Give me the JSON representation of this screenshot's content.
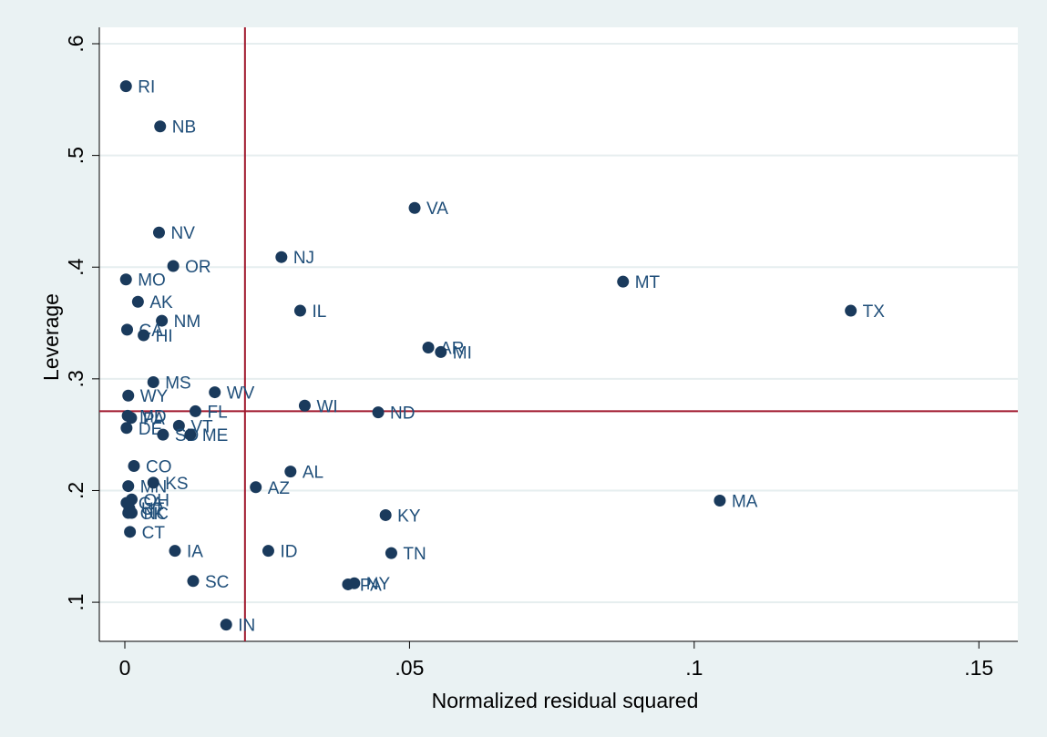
{
  "chart_data": {
    "type": "scatter",
    "xlabel": "Normalized residual squared",
    "ylabel": "Leverage",
    "xlim": [
      0,
      0.153
    ],
    "ylim": [
      0.065,
      0.6
    ],
    "xticks": [
      0,
      0.05,
      0.1,
      0.15
    ],
    "xtick_labels": [
      "0",
      ".05",
      ".1",
      ".15"
    ],
    "yticks": [
      0.1,
      0.2,
      0.3,
      0.4,
      0.5,
      0.6
    ],
    "ytick_labels": [
      ".1",
      ".2",
      ".3",
      ".4",
      ".5",
      ".6"
    ],
    "grid": true,
    "reference_lines": {
      "x": 0.0211,
      "y": 0.271
    },
    "colors": {
      "background": "#eaf2f3",
      "plot_area": "#ffffff",
      "marker": "#1a3a5c",
      "label": "#1f4e79",
      "reference_line": "#a0182d",
      "grid": "#e6eeef"
    },
    "points": [
      {
        "label": "RI",
        "x": 0.0002,
        "y": 0.562
      },
      {
        "label": "NB",
        "x": 0.0062,
        "y": 0.526
      },
      {
        "label": "VA",
        "x": 0.0509,
        "y": 0.453
      },
      {
        "label": "NV",
        "x": 0.006,
        "y": 0.431
      },
      {
        "label": "NJ",
        "x": 0.0275,
        "y": 0.409
      },
      {
        "label": "OR",
        "x": 0.0085,
        "y": 0.401
      },
      {
        "label": "MO",
        "x": 0.0002,
        "y": 0.389
      },
      {
        "label": "MT",
        "x": 0.0875,
        "y": 0.387
      },
      {
        "label": "AK",
        "x": 0.0023,
        "y": 0.369
      },
      {
        "label": "IL",
        "x": 0.0308,
        "y": 0.361
      },
      {
        "label": "TX",
        "x": 0.1275,
        "y": 0.361
      },
      {
        "label": "NM",
        "x": 0.0065,
        "y": 0.352
      },
      {
        "label": "CA",
        "x": 0.0004,
        "y": 0.344
      },
      {
        "label": "HI",
        "x": 0.0033,
        "y": 0.339
      },
      {
        "label": "AR",
        "x": 0.0533,
        "y": 0.328
      },
      {
        "label": "MI",
        "x": 0.0555,
        "y": 0.324
      },
      {
        "label": "MS",
        "x": 0.005,
        "y": 0.297
      },
      {
        "label": "WV",
        "x": 0.0158,
        "y": 0.288
      },
      {
        "label": "WY",
        "x": 0.0006,
        "y": 0.285
      },
      {
        "label": "WI",
        "x": 0.0316,
        "y": 0.276
      },
      {
        "label": "FL",
        "x": 0.0124,
        "y": 0.271
      },
      {
        "label": "ND",
        "x": 0.0445,
        "y": 0.27
      },
      {
        "label": "MD",
        "x": 0.0005,
        "y": 0.267
      },
      {
        "label": "PA",
        "x": 0.0011,
        "y": 0.265
      },
      {
        "label": "VT",
        "x": 0.0095,
        "y": 0.258
      },
      {
        "label": "DE",
        "x": 0.0003,
        "y": 0.256
      },
      {
        "label": "SD",
        "x": 0.0067,
        "y": 0.25
      },
      {
        "label": "ME",
        "x": 0.0115,
        "y": 0.25
      },
      {
        "label": "CO",
        "x": 0.0016,
        "y": 0.222
      },
      {
        "label": "AL",
        "x": 0.0291,
        "y": 0.217
      },
      {
        "label": "MN",
        "x": 0.0006,
        "y": 0.204
      },
      {
        "label": "KS",
        "x": 0.005,
        "y": 0.207
      },
      {
        "label": "AZ",
        "x": 0.023,
        "y": 0.203
      },
      {
        "label": "OH",
        "x": 0.0012,
        "y": 0.192
      },
      {
        "label": "MA",
        "x": 0.1045,
        "y": 0.191
      },
      {
        "label": "GA",
        "x": 0.0003,
        "y": 0.189
      },
      {
        "label": "UT",
        "x": 0.0008,
        "y": 0.184
      },
      {
        "label": "OK",
        "x": 0.0006,
        "y": 0.18
      },
      {
        "label": "NC",
        "x": 0.0012,
        "y": 0.18
      },
      {
        "label": "KY",
        "x": 0.0458,
        "y": 0.178
      },
      {
        "label": "CT",
        "x": 0.0009,
        "y": 0.163
      },
      {
        "label": "IA",
        "x": 0.0088,
        "y": 0.146
      },
      {
        "label": "ID",
        "x": 0.0252,
        "y": 0.146
      },
      {
        "label": "TN",
        "x": 0.0468,
        "y": 0.144
      },
      {
        "label": "SC",
        "x": 0.012,
        "y": 0.119
      },
      {
        "label": "PA",
        "x": 0.0392,
        "y": 0.116
      },
      {
        "label": "NY",
        "x": 0.0403,
        "y": 0.117
      },
      {
        "label": "IN",
        "x": 0.0178,
        "y": 0.08
      }
    ]
  }
}
